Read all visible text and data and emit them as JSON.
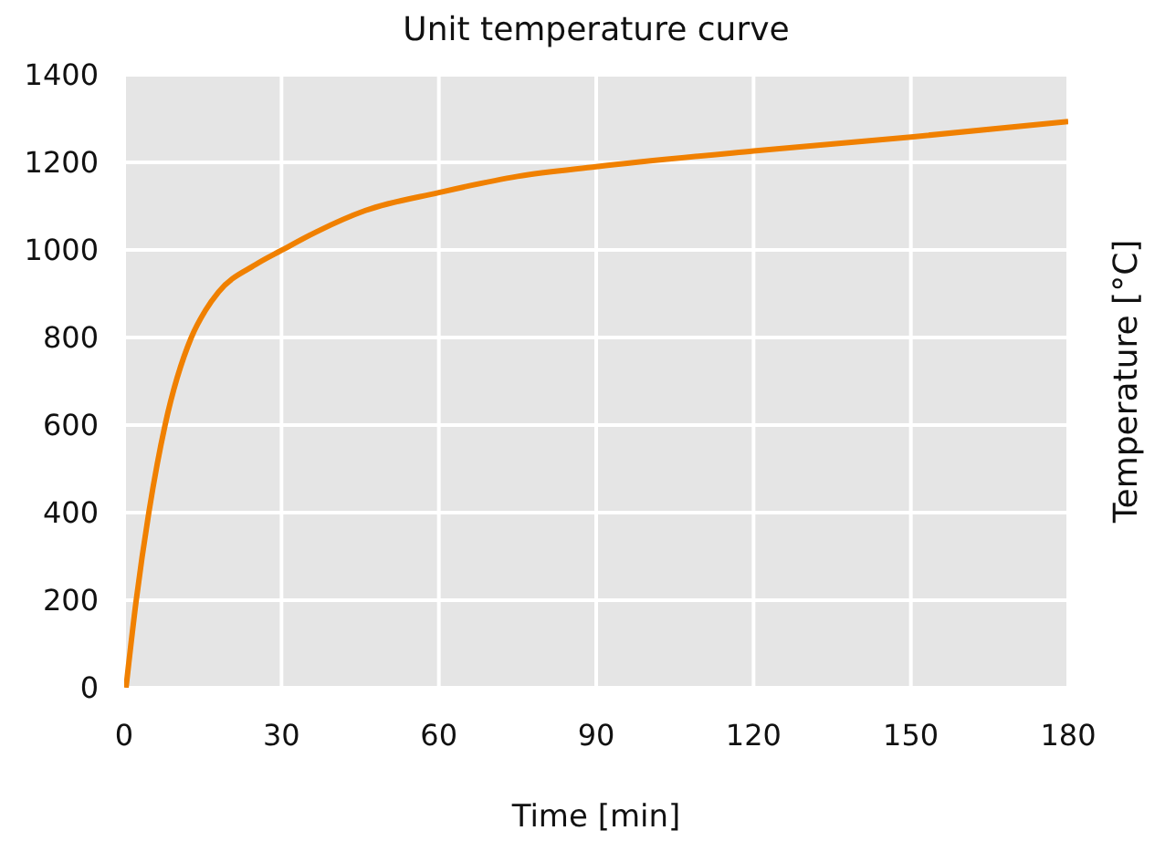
{
  "chart_data": {
    "type": "line",
    "title": "Unit temperature curve",
    "xlabel": "Time [min]",
    "ylabel": "Temperature [°C]",
    "x": [
      0.35,
      2.3,
      4.7,
      7.8,
      12.8,
      15.5,
      18,
      25,
      30,
      36.6,
      46,
      60,
      75,
      90,
      120,
      150,
      180
    ],
    "series": [
      {
        "color": "#f08000",
        "values": [
          0,
          200,
          400,
          600,
          800,
          862,
          904,
          966,
          999,
          1041,
          1090,
          1131,
          1168,
          1190,
          1226,
          1258,
          1293
        ]
      }
    ],
    "xlim": [
      0,
      180
    ],
    "xticks": [
      0,
      30,
      60,
      90,
      120,
      150,
      180
    ],
    "ylim": [
      0,
      1400
    ],
    "yticks": [
      0,
      200,
      400,
      600,
      800,
      1000,
      1200,
      1400
    ],
    "grid": true
  }
}
